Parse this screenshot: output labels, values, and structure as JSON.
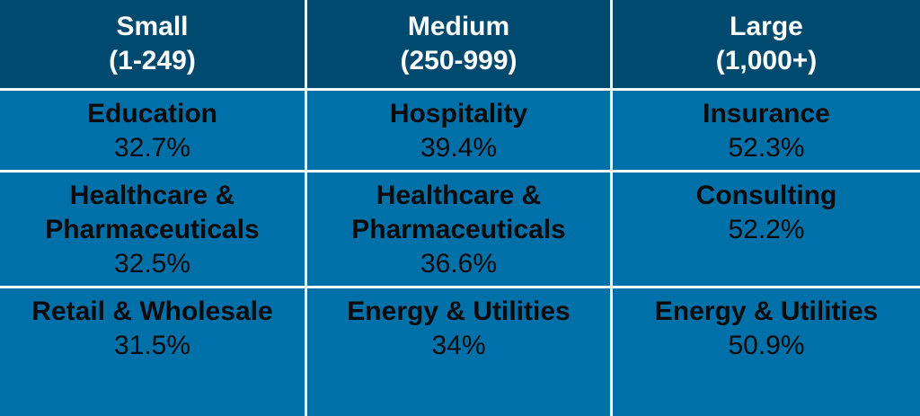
{
  "columns": [
    {
      "name": "Small",
      "range": "(1-249)"
    },
    {
      "name": "Medium",
      "range": "(250-999)"
    },
    {
      "name": "Large",
      "range": "(1,000+)"
    }
  ],
  "rows": [
    [
      {
        "industry": [
          "Education"
        ],
        "percent": "32.7%"
      },
      {
        "industry": [
          "Hospitality"
        ],
        "percent": "39.4%"
      },
      {
        "industry": [
          "Insurance"
        ],
        "percent": "52.3%"
      }
    ],
    [
      {
        "industry": [
          "Healthcare &",
          "Pharmaceuticals"
        ],
        "percent": "32.5%"
      },
      {
        "industry": [
          "Healthcare &",
          "Pharmaceuticals"
        ],
        "percent": "36.6%"
      },
      {
        "industry": [
          "Consulting"
        ],
        "percent": "52.2%"
      }
    ],
    [
      {
        "industry": [
          "Retail & Wholesale"
        ],
        "percent": "31.5%"
      },
      {
        "industry": [
          "Energy & Utilities"
        ],
        "percent": "34%"
      },
      {
        "industry": [
          "Energy & Utilities"
        ],
        "percent": "50.9%"
      }
    ]
  ],
  "colors": {
    "header_bg": "#004a70",
    "cell_bg": "#0070a8",
    "border": "#ffffff",
    "header_text": "#ffffff",
    "body_text": "#0a0a0a"
  }
}
